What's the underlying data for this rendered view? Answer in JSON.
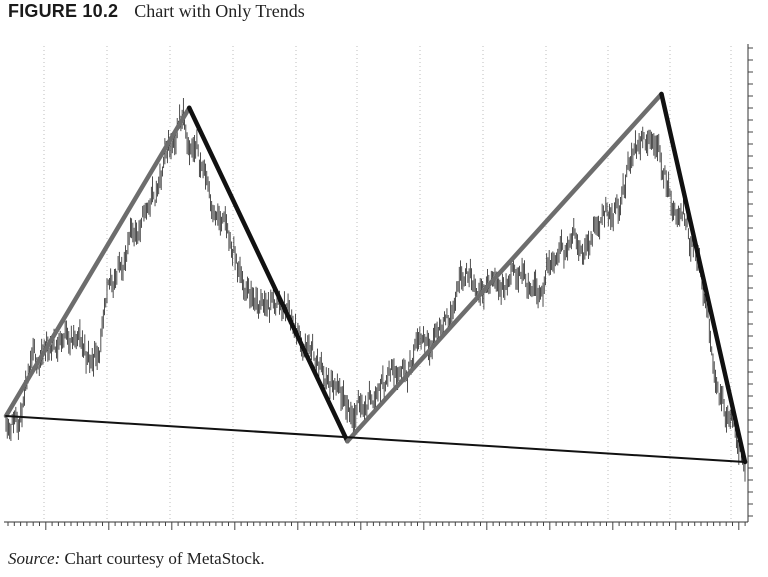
{
  "figure": {
    "number": "FIGURE 10.2",
    "title": "Chart with Only Trends"
  },
  "source": {
    "label": "Source:",
    "text": " Chart courtesy of MetaStock."
  },
  "chart_data": {
    "type": "line",
    "title": "",
    "xlabel": "",
    "ylabel": "",
    "xlim": [
      0,
      1000
    ],
    "ylim": [
      0,
      1000
    ],
    "grid": true,
    "price_color": "#222222",
    "uptrend_color": "#6d6d6d",
    "downtrend_color": "#111111",
    "support_color": "#111111",
    "price_anchors": [
      [
        0,
        200
      ],
      [
        40,
        290
      ],
      [
        85,
        400
      ],
      [
        115,
        310
      ],
      [
        160,
        550
      ],
      [
        210,
        700
      ],
      [
        240,
        870
      ],
      [
        270,
        730
      ],
      [
        320,
        480
      ],
      [
        350,
        420
      ],
      [
        380,
        440
      ],
      [
        415,
        330
      ],
      [
        460,
        180
      ],
      [
        510,
        290
      ],
      [
        560,
        380
      ],
      [
        620,
        470
      ],
      [
        680,
        490
      ],
      [
        730,
        510
      ],
      [
        780,
        590
      ],
      [
        830,
        690
      ],
      [
        860,
        810
      ],
      [
        880,
        820
      ],
      [
        905,
        650
      ],
      [
        935,
        550
      ],
      [
        960,
        280
      ],
      [
        985,
        150
      ],
      [
        1000,
        100
      ]
    ],
    "series": [
      {
        "name": "",
        "role": "uptrend",
        "x": [
          0,
          248
        ],
        "y": [
          200,
          870
        ]
      },
      {
        "name": "",
        "role": "downtrend",
        "x": [
          248,
          462
        ],
        "y": [
          870,
          145
        ]
      },
      {
        "name": "",
        "role": "uptrend",
        "x": [
          462,
          887
        ],
        "y": [
          145,
          900
        ]
      },
      {
        "name": "",
        "role": "downtrend",
        "x": [
          887,
          1000
        ],
        "y": [
          900,
          100
        ]
      },
      {
        "name": "",
        "role": "support",
        "x": [
          0,
          1000
        ],
        "y": [
          200,
          100
        ]
      }
    ]
  }
}
